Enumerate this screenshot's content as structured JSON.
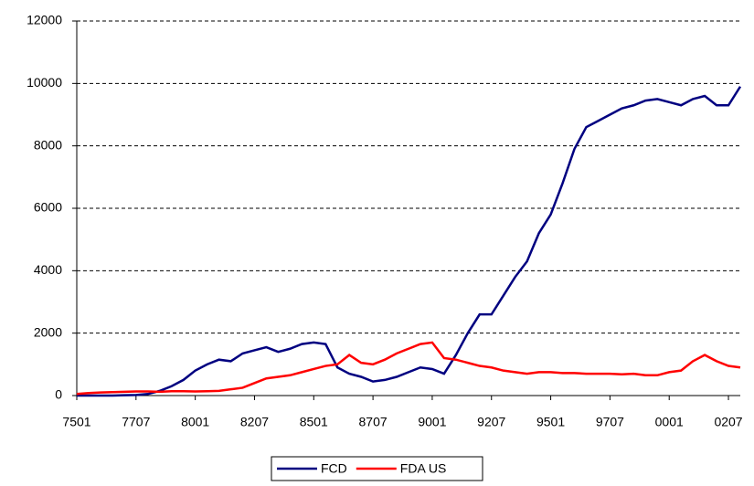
{
  "chart_data": {
    "type": "line",
    "categories": [
      "7501",
      null,
      null,
      null,
      null,
      "7707",
      null,
      null,
      null,
      null,
      "8001",
      null,
      null,
      null,
      null,
      "8207",
      null,
      null,
      null,
      null,
      "8501",
      null,
      null,
      null,
      null,
      "8707",
      null,
      null,
      null,
      null,
      "9001",
      null,
      null,
      null,
      null,
      "9207",
      null,
      null,
      null,
      null,
      "9501",
      null,
      null,
      null,
      null,
      "9707",
      null,
      null,
      null,
      null,
      "0001",
      null,
      null,
      null,
      null,
      "0207",
      null
    ],
    "series": [
      {
        "name": "FCD",
        "color": "#000080",
        "values": [
          0,
          0,
          0,
          0,
          10,
          20,
          50,
          150,
          300,
          500,
          800,
          1000,
          1150,
          1100,
          1350,
          1450,
          1550,
          1400,
          1500,
          1650,
          1700,
          1650,
          900,
          700,
          600,
          450,
          500,
          600,
          750,
          900,
          850,
          700,
          1300,
          2000,
          2600,
          2600,
          3200,
          3800,
          4300,
          5200,
          5800,
          6800,
          7900,
          8600,
          8800,
          9000,
          9200,
          9300,
          9450,
          9500,
          9400,
          9300,
          9500,
          9600,
          9300,
          9300,
          9900
        ]
      },
      {
        "name": "FDA US",
        "color": "#ff0000",
        "values": [
          50,
          80,
          100,
          110,
          120,
          130,
          130,
          120,
          140,
          140,
          130,
          140,
          150,
          200,
          250,
          400,
          550,
          600,
          650,
          750,
          850,
          950,
          1000,
          1300,
          1050,
          1000,
          1150,
          1350,
          1500,
          1650,
          1700,
          1200,
          1150,
          1050,
          950,
          900,
          800,
          750,
          700,
          750,
          750,
          720,
          720,
          700,
          700,
          700,
          680,
          700,
          650,
          650,
          750,
          800,
          1100,
          1300,
          1100,
          950,
          900
        ]
      }
    ],
    "ylim": [
      0,
      12000
    ],
    "yticks": [
      0,
      2000,
      4000,
      6000,
      8000,
      10000,
      12000
    ],
    "grid": true,
    "legend": "bottom"
  }
}
